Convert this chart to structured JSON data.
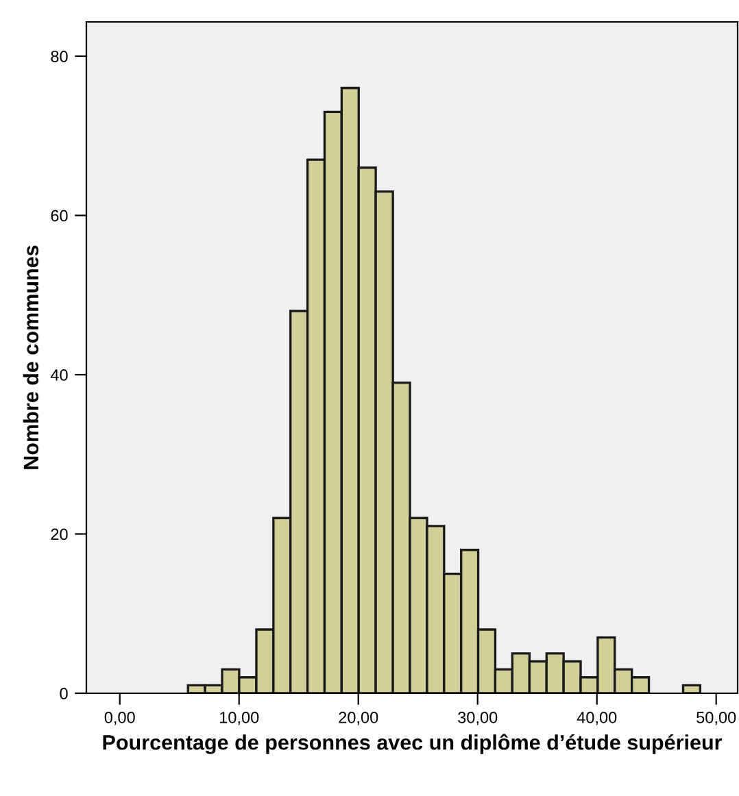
{
  "chart_data": {
    "type": "histogram",
    "xlabel": "Pourcentage de personnes avec un diplôme d’étude supérieur",
    "ylabel": "Nombre de communes",
    "bins": [
      5.72,
      7.15,
      8.58,
      10.01,
      11.45,
      12.88,
      14.31,
      15.74,
      17.17,
      18.6,
      20.03,
      21.46,
      22.9,
      24.33,
      25.76,
      27.19,
      28.62,
      30.05,
      31.48,
      32.91,
      34.35,
      35.78,
      37.21,
      38.64,
      40.07,
      41.5,
      42.93,
      44.36,
      45.8,
      47.23,
      48.66
    ],
    "values": [
      1,
      1,
      3,
      2,
      8,
      22,
      48,
      67,
      73,
      76,
      66,
      63,
      39,
      22,
      21,
      15,
      18,
      8,
      3,
      5,
      4,
      5,
      4,
      2,
      7,
      3,
      2,
      0,
      0,
      1
    ],
    "color": "#d3cf98",
    "xlim": [
      -2.8,
      51.8
    ],
    "xticks": [
      {
        "value": 0,
        "label": "0,00"
      },
      {
        "value": 10,
        "label": "10,00"
      },
      {
        "value": 20,
        "label": "20,00"
      },
      {
        "value": 30,
        "label": "30,00"
      },
      {
        "value": 40,
        "label": "40,00"
      },
      {
        "value": 50,
        "label": "50,00"
      }
    ],
    "ylim": [
      0,
      84.3
    ],
    "yticks": [
      0,
      20,
      40,
      60,
      80
    ],
    "grid": false
  }
}
